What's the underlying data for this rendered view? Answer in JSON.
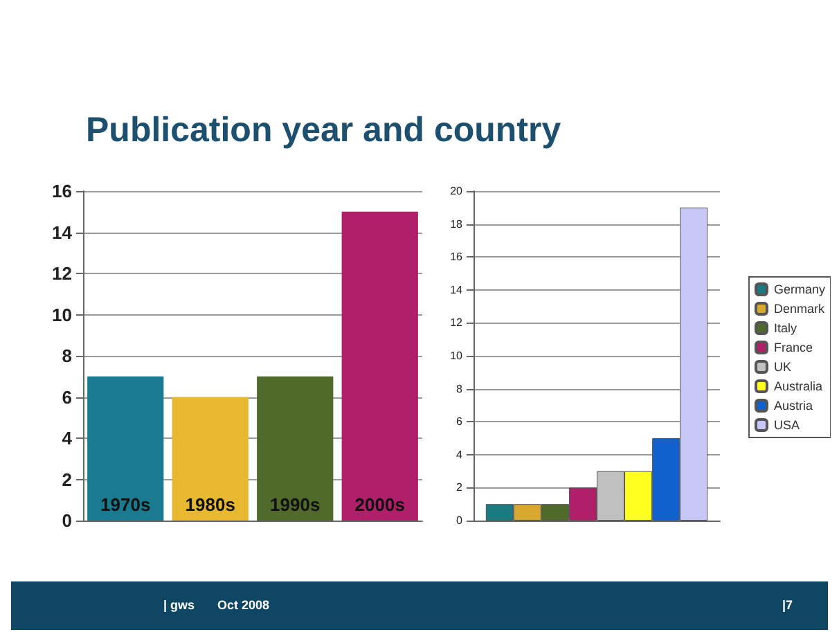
{
  "chart_data": [
    {
      "type": "bar",
      "title": "Publication year and country",
      "categories": [
        "1970s",
        "1980s",
        "1990s",
        "2000s"
      ],
      "values": [
        7,
        6,
        7,
        15
      ],
      "colors": [
        "#1a7a90",
        "#e8b830",
        "#4f6a2a",
        "#b0206a"
      ],
      "ylim": [
        0,
        16
      ],
      "yticks": [
        0,
        2,
        4,
        6,
        8,
        10,
        12,
        14,
        16
      ],
      "grid": "y",
      "legend": false
    },
    {
      "type": "bar",
      "categories": [
        null
      ],
      "series": [
        {
          "name": "Germany",
          "color": "#1a7a80",
          "values": [
            1
          ]
        },
        {
          "name": "Denmark",
          "color": "#d8a830",
          "values": [
            1
          ]
        },
        {
          "name": "Italy",
          "color": "#4f6a2a",
          "values": [
            1
          ]
        },
        {
          "name": "France",
          "color": "#b0206a",
          "values": [
            2
          ]
        },
        {
          "name": "UK",
          "color": "#c0c0c0",
          "values": [
            3
          ]
        },
        {
          "name": "Australia",
          "color": "#ffff20",
          "values": [
            3
          ]
        },
        {
          "name": "Austria",
          "color": "#1060d0",
          "values": [
            5
          ]
        },
        {
          "name": "USA",
          "color": "#c8c8f8",
          "values": [
            19
          ]
        }
      ],
      "ylim": [
        0,
        20
      ],
      "yticks": [
        0,
        2,
        4,
        6,
        8,
        10,
        12,
        14,
        16,
        18,
        20
      ],
      "grid": "y",
      "legend": "right",
      "annotations": [
        "| gws",
        "Oct 2008",
        "|7"
      ]
    }
  ]
}
